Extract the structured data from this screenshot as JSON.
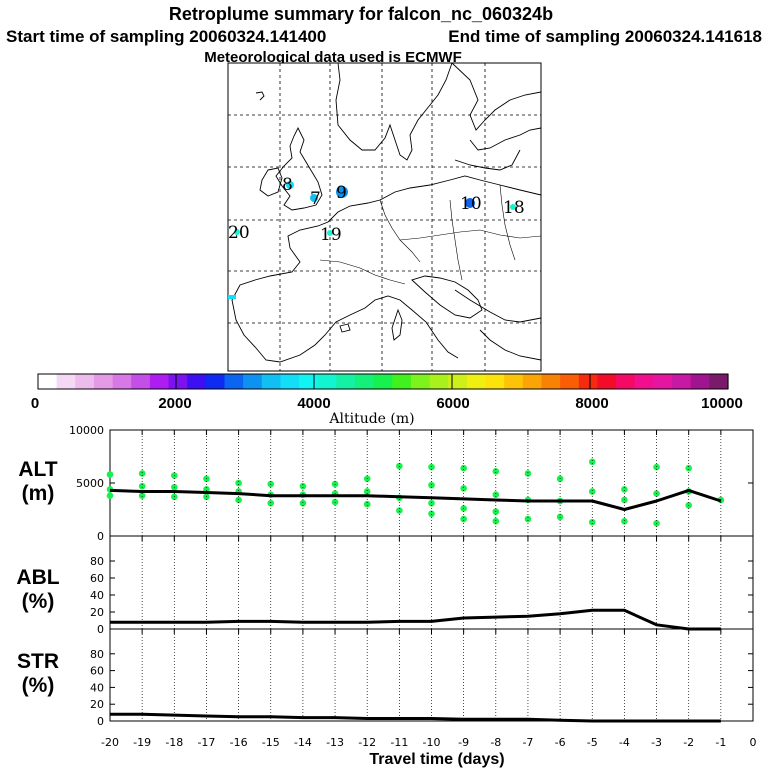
{
  "titles": {
    "line1": "Retroplume summary for falcon_nc_060324b",
    "start": "Start time of sampling 20060324.141400",
    "end": "End time of sampling 20060324.141618",
    "line3": "Meteorological data used is ECMWF"
  },
  "map": {
    "labels": [
      "8",
      "7",
      "9",
      "10",
      "18",
      "20",
      "19"
    ]
  },
  "colorbar": {
    "colors": [
      "#ffffff",
      "#f4d8f4",
      "#ecbcec",
      "#e49ae4",
      "#d877e6",
      "#c44fe6",
      "#ad1cf0",
      "#7d12f0",
      "#3c10f2",
      "#0d2bf2",
      "#0b64f2",
      "#0e92f2",
      "#11bff2",
      "#12def7",
      "#11f5f2",
      "#11f5d0",
      "#14f1a4",
      "#15f07a",
      "#16f14e",
      "#40f11e",
      "#7ef21c",
      "#a9f01c",
      "#cfef1b",
      "#f1ef10",
      "#fde20c",
      "#fcc308",
      "#faa406",
      "#f88204",
      "#f95d06",
      "#f52a10",
      "#f20c2a",
      "#f40a64",
      "#f10f8f",
      "#e615a1",
      "#c719a3",
      "#a01490",
      "#7a1a6a"
    ],
    "tick_labels": [
      "0",
      "2000",
      "4000",
      "6000",
      "8000",
      "10000"
    ],
    "title": "Altitude (m)"
  },
  "panels": {
    "alt_label": [
      "ALT",
      "(m)"
    ],
    "abl_label": [
      "ABL",
      "(%)"
    ],
    "str_label": [
      "STR",
      "(%)"
    ]
  },
  "chart_data": {
    "type": "line",
    "xlabel": "Travel time (days)",
    "x_ticks": [
      "-20",
      "-19",
      "-18",
      "-17",
      "-16",
      "-15",
      "-14",
      "-13",
      "-12",
      "-11",
      "-10",
      "-9",
      "-8",
      "-7",
      "-6",
      "-5",
      "-4",
      "-3",
      "-2",
      "-1",
      "0"
    ],
    "xlim": [
      -20,
      0
    ],
    "alt": {
      "ylim": [
        0,
        10000
      ],
      "y_ticks": [
        "10000",
        "5000",
        "0"
      ],
      "mean_line": {
        "x": [
          -20,
          -19,
          -18,
          -17,
          -16,
          -15,
          -14,
          -13,
          -12,
          -11,
          -10,
          -9,
          -8,
          -7,
          -6,
          -5,
          -4,
          -3,
          -2,
          -1
        ],
        "y": [
          4300,
          4200,
          4200,
          4100,
          4000,
          3800,
          3800,
          3800,
          3800,
          3700,
          3600,
          3500,
          3400,
          3300,
          3300,
          3300,
          2500,
          3300,
          4300,
          3300
        ]
      },
      "points": [
        {
          "x": -20,
          "y": 5800
        },
        {
          "x": -20,
          "y": 4400
        },
        {
          "x": -20,
          "y": 3800
        },
        {
          "x": -19,
          "y": 5900
        },
        {
          "x": -19,
          "y": 4700
        },
        {
          "x": -19,
          "y": 3800
        },
        {
          "x": -18,
          "y": 5700
        },
        {
          "x": -18,
          "y": 4600
        },
        {
          "x": -18,
          "y": 3700
        },
        {
          "x": -17,
          "y": 5400
        },
        {
          "x": -17,
          "y": 4400
        },
        {
          "x": -17,
          "y": 3700
        },
        {
          "x": -16,
          "y": 5000
        },
        {
          "x": -16,
          "y": 4200
        },
        {
          "x": -16,
          "y": 3400
        },
        {
          "x": -15,
          "y": 4900
        },
        {
          "x": -15,
          "y": 3900
        },
        {
          "x": -15,
          "y": 3100
        },
        {
          "x": -14,
          "y": 4700
        },
        {
          "x": -14,
          "y": 3900
        },
        {
          "x": -14,
          "y": 3100
        },
        {
          "x": -13,
          "y": 4900
        },
        {
          "x": -13,
          "y": 4000
        },
        {
          "x": -13,
          "y": 3200
        },
        {
          "x": -12,
          "y": 5400
        },
        {
          "x": -12,
          "y": 4200
        },
        {
          "x": -12,
          "y": 3000
        },
        {
          "x": -11,
          "y": 6600
        },
        {
          "x": -11,
          "y": 3600
        },
        {
          "x": -11,
          "y": 2400
        },
        {
          "x": -10,
          "y": 6500
        },
        {
          "x": -10,
          "y": 4800
        },
        {
          "x": -10,
          "y": 3100
        },
        {
          "x": -10,
          "y": 2100
        },
        {
          "x": -9,
          "y": 6400
        },
        {
          "x": -9,
          "y": 4500
        },
        {
          "x": -9,
          "y": 2600
        },
        {
          "x": -9,
          "y": 1600
        },
        {
          "x": -8,
          "y": 6100
        },
        {
          "x": -8,
          "y": 3900
        },
        {
          "x": -8,
          "y": 2300
        },
        {
          "x": -8,
          "y": 1400
        },
        {
          "x": -7,
          "y": 5900
        },
        {
          "x": -7,
          "y": 3400
        },
        {
          "x": -7,
          "y": 1600
        },
        {
          "x": -6,
          "y": 5400
        },
        {
          "x": -6,
          "y": 3300
        },
        {
          "x": -6,
          "y": 1800
        },
        {
          "x": -5,
          "y": 7000
        },
        {
          "x": -5,
          "y": 4200
        },
        {
          "x": -5,
          "y": 1300
        },
        {
          "x": -4,
          "y": 4400
        },
        {
          "x": -4,
          "y": 3400
        },
        {
          "x": -4,
          "y": 1400
        },
        {
          "x": -3,
          "y": 6500
        },
        {
          "x": -3,
          "y": 4000
        },
        {
          "x": -3,
          "y": 1200
        },
        {
          "x": -2,
          "y": 6400
        },
        {
          "x": -2,
          "y": 4200
        },
        {
          "x": -2,
          "y": 2900
        },
        {
          "x": -1,
          "y": 3400
        }
      ]
    },
    "abl": {
      "ylim": [
        0,
        100
      ],
      "y_ticks": [
        "80",
        "60",
        "40",
        "20",
        "0"
      ],
      "x": [
        -20,
        -19,
        -18,
        -17,
        -16,
        -15,
        -14,
        -13,
        -12,
        -11,
        -10,
        -9,
        -8,
        -7,
        -6,
        -5,
        -4,
        -3,
        -2,
        -1
      ],
      "y": [
        8,
        8,
        8,
        8,
        9,
        9,
        8,
        8,
        8,
        9,
        9,
        13,
        14,
        15,
        18,
        22,
        22,
        5,
        0,
        0
      ]
    },
    "str": {
      "ylim": [
        0,
        100
      ],
      "y_ticks": [
        "80",
        "60",
        "40",
        "20",
        "0"
      ],
      "x": [
        -20,
        -19,
        -18,
        -17,
        -16,
        -15,
        -14,
        -13,
        -12,
        -11,
        -10,
        -9,
        -8,
        -7,
        -6,
        -5,
        -4,
        -3,
        -2,
        -1
      ],
      "y": [
        8,
        8,
        7,
        6,
        5,
        5,
        4,
        4,
        3,
        3,
        3,
        2,
        2,
        2,
        1,
        0,
        0,
        0,
        0,
        0
      ]
    }
  }
}
